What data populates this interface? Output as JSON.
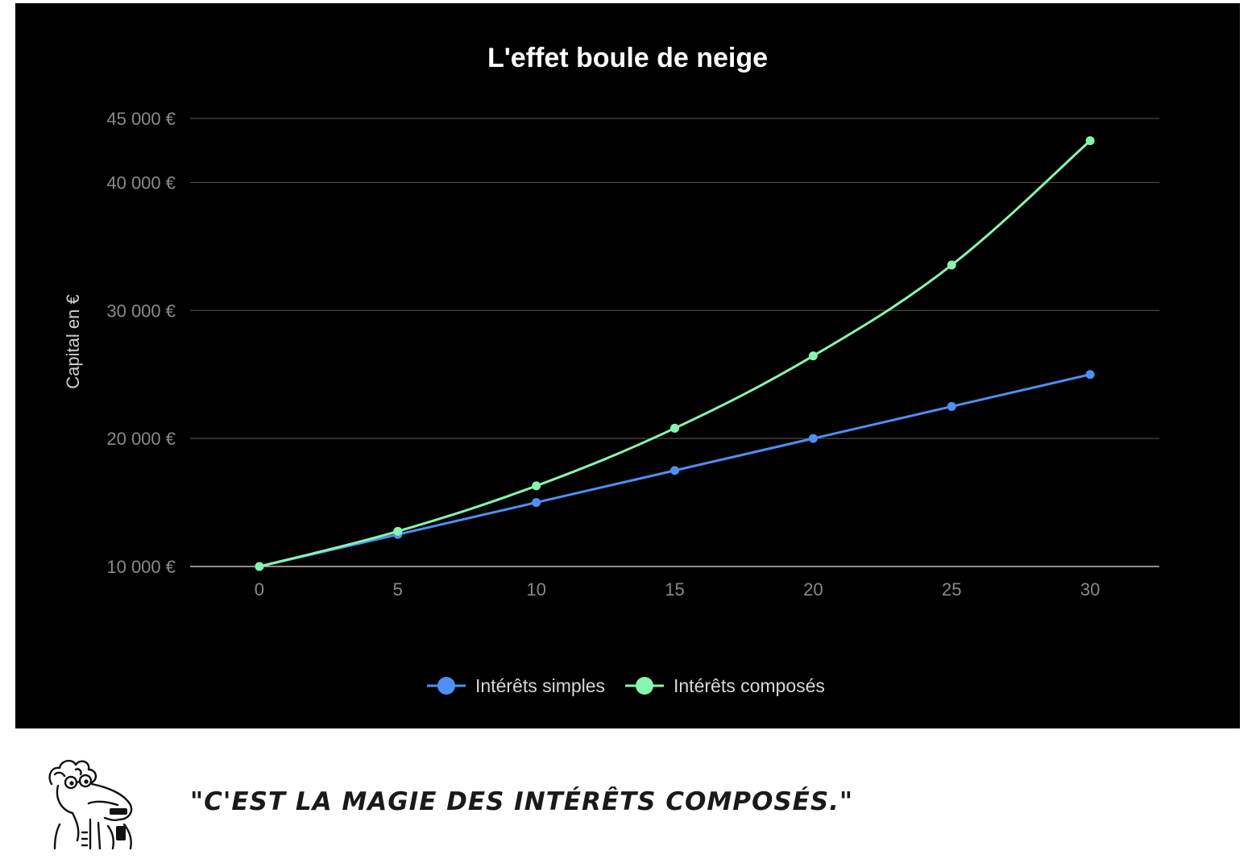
{
  "chart_data": {
    "type": "line",
    "title": "L'effet boule de neige",
    "xlabel": "",
    "ylabel": "Capital en €",
    "x": [
      0,
      5,
      10,
      15,
      20,
      25,
      30
    ],
    "x_ticks": [
      "0",
      "5",
      "10",
      "15",
      "20",
      "25",
      "30"
    ],
    "xlim": [
      -2.5,
      32.5
    ],
    "ylim": [
      10000,
      45000
    ],
    "y_ticks": [
      10000,
      20000,
      30000,
      40000,
      45000
    ],
    "y_tick_labels": [
      "10 000 €",
      "20 000 €",
      "30 000 €",
      "40 000 €",
      "45 000 €"
    ],
    "grid": true,
    "legend_position": "bottom",
    "series": [
      {
        "name": "Intérêts simples",
        "color": "#4f8ff7",
        "values": [
          10000,
          12500,
          15000,
          17500,
          20000,
          22500,
          25000
        ]
      },
      {
        "name": "Intérêts composés",
        "color": "#86f5b0",
        "values": [
          10000,
          12750,
          16300,
          20800,
          26450,
          33550,
          43260
        ]
      }
    ]
  },
  "caption": {
    "quote": "\"C'EST LA MAGIE DES INTÉRÊTS COMPOSÉS.\"",
    "mascot_icon": "bearded-character-drawing-icon"
  }
}
